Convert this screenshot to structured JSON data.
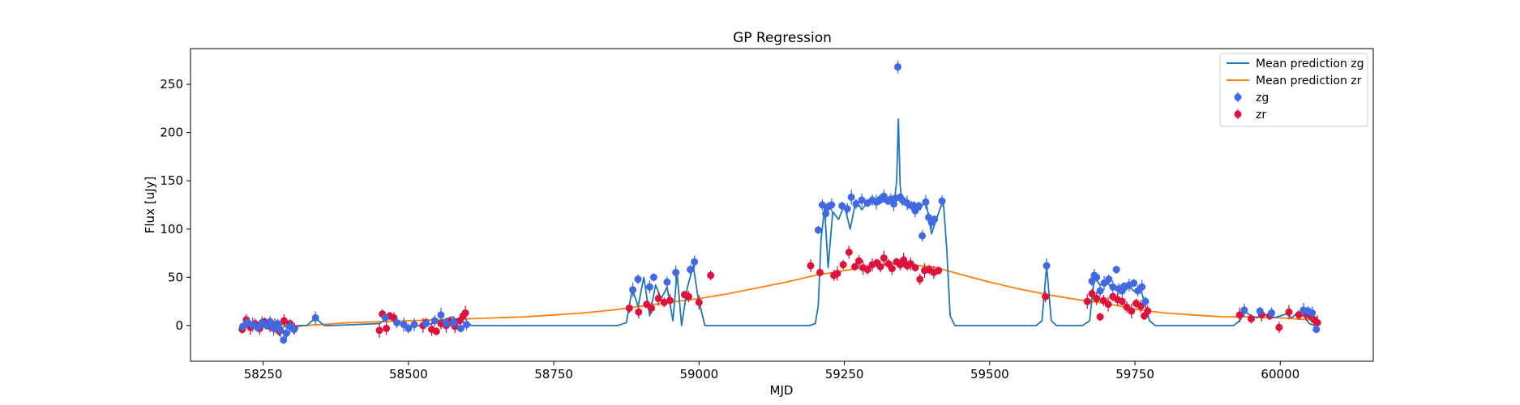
{
  "chart_data": {
    "type": "scatter",
    "title": "GP Regression",
    "xlabel": "MJD",
    "ylabel": "Flux [uJy]",
    "xlim": [
      58125,
      60160
    ],
    "ylim": [
      -37,
      287
    ],
    "xticks": [
      58250,
      58500,
      58750,
      59000,
      59250,
      59500,
      59750,
      60000
    ],
    "yticks": [
      0,
      50,
      100,
      150,
      200,
      250
    ],
    "grid": false,
    "legend_position": "top-right",
    "legend": [
      "Mean prediction zg",
      "Mean prediction zr",
      "zg",
      "zr"
    ],
    "colors": {
      "zg_line": "#1f77b4",
      "zr_line": "#ff7f0e",
      "zg_points": "#4169e1",
      "zr_points": "#dc143c"
    },
    "series": [
      {
        "name": "Mean prediction zg",
        "kind": "line",
        "x": [
          58210,
          58225,
          58240,
          58255,
          58270,
          58285,
          58300,
          58310,
          58325,
          58340,
          58355,
          58370,
          58450,
          58460,
          58470,
          58480,
          58490,
          58500,
          58510,
          58530,
          58545,
          58560,
          58575,
          58590,
          58600,
          58610,
          58700,
          58860,
          58875,
          58885,
          58895,
          58905,
          58915,
          58925,
          58935,
          58945,
          58955,
          58962,
          58970,
          58980,
          58990,
          58998,
          59010,
          59190,
          59200,
          59205,
          59210,
          59216,
          59222,
          59230,
          59240,
          59250,
          59260,
          59270,
          59280,
          59290,
          59300,
          59310,
          59320,
          59330,
          59336,
          59340,
          59343,
          59346,
          59350,
          59355,
          59360,
          59370,
          59380,
          59390,
          59400,
          59408,
          59414,
          59420,
          59426,
          59432,
          59440,
          59580,
          59590,
          59598,
          59606,
          59615,
          59660,
          59672,
          59680,
          59690,
          59700,
          59710,
          59720,
          59730,
          59740,
          59750,
          59760,
          59768,
          59775,
          59785,
          59920,
          59930,
          59940,
          59950,
          59960,
          59970,
          59980,
          59990,
          60000,
          60010,
          60020,
          60030,
          60040,
          60050,
          60060
        ],
        "y": [
          0,
          2,
          -2,
          1,
          -3,
          2,
          -5,
          0,
          0,
          8,
          0,
          0,
          2,
          6,
          8,
          4,
          2,
          -1,
          0,
          0,
          3,
          6,
          9,
          4,
          2,
          0,
          0,
          0,
          3,
          38,
          20,
          50,
          10,
          42,
          28,
          40,
          5,
          55,
          0,
          40,
          62,
          30,
          0,
          0,
          2,
          20,
          90,
          122,
          60,
          118,
          110,
          125,
          100,
          130,
          120,
          128,
          132,
          126,
          130,
          132,
          128,
          150,
          214,
          145,
          125,
          130,
          122,
          128,
          120,
          130,
          95,
          110,
          120,
          130,
          80,
          10,
          0,
          0,
          5,
          62,
          5,
          0,
          0,
          5,
          50,
          42,
          45,
          40,
          38,
          44,
          40,
          35,
          38,
          20,
          5,
          0,
          0,
          5,
          14,
          10,
          8,
          12,
          10,
          8,
          10,
          12,
          8,
          14,
          10,
          2,
          0
        ]
      },
      {
        "name": "Mean prediction zr",
        "kind": "line",
        "x": [
          58210,
          58225,
          58240,
          58260,
          58280,
          58300,
          58320,
          58350,
          58400,
          58450,
          58500,
          58550,
          58600,
          58650,
          58700,
          58750,
          58800,
          58850,
          58900,
          58950,
          59000,
          59050,
          59100,
          59150,
          59200,
          59250,
          59280,
          59300,
          59320,
          59340,
          59360,
          59380,
          59400,
          59420,
          59450,
          59500,
          59550,
          59600,
          59650,
          59700,
          59750,
          59800,
          59850,
          59900,
          59950,
          60000,
          60050,
          60065
        ],
        "y": [
          -2,
          -1,
          -2,
          -1,
          -1,
          -2,
          0,
          1,
          3,
          4,
          5,
          6,
          7,
          8,
          9,
          11,
          13,
          16,
          20,
          24,
          28,
          33,
          39,
          45,
          52,
          57,
          60,
          62,
          63,
          64,
          63,
          62,
          61,
          58,
          53,
          45,
          38,
          32,
          27,
          23,
          17,
          13,
          11,
          9,
          9,
          8,
          6,
          5
        ]
      },
      {
        "name": "zg",
        "kind": "points",
        "x": [
          58215,
          58222,
          58232,
          58240,
          58248,
          58256,
          58262,
          58268,
          58275,
          58280,
          58285,
          58290,
          58296,
          58303,
          58340,
          58460,
          58480,
          58492,
          58500,
          58510,
          58530,
          58545,
          58556,
          58565,
          58578,
          58590,
          58600,
          58886,
          58895,
          58915,
          58922,
          58945,
          58960,
          58985,
          58992,
          59205,
          59212,
          59218,
          59222,
          59228,
          59246,
          59255,
          59262,
          59270,
          59280,
          59290,
          59298,
          59305,
          59312,
          59318,
          59325,
          59330,
          59335,
          59338,
          59342,
          59346,
          59350,
          59358,
          59366,
          59372,
          59378,
          59384,
          59390,
          59395,
          59400,
          59405,
          59418,
          59598,
          59676,
          59680,
          59684,
          59690,
          59697,
          59705,
          59712,
          59718,
          59722,
          59728,
          59733,
          59740,
          59748,
          59755,
          59762,
          59768,
          59938,
          59965,
          59985,
          60040,
          60048,
          60055,
          60062
        ],
        "y": [
          -1,
          3,
          1,
          -2,
          3,
          0,
          4,
          -3,
          2,
          -5,
          -15,
          -8,
          -1,
          -4,
          8,
          8,
          3,
          1,
          -3,
          1,
          2,
          5,
          11,
          2,
          3,
          -3,
          1,
          37,
          48,
          40,
          50,
          45,
          55,
          58,
          66,
          99,
          125,
          116,
          123,
          125,
          124,
          121,
          133,
          126,
          130,
          127,
          130,
          128,
          131,
          134,
          129,
          131,
          126,
          132,
          268,
          133,
          130,
          127,
          124,
          119,
          124,
          93,
          128,
          112,
          107,
          110,
          129,
          62,
          46,
          52,
          50,
          36,
          44,
          48,
          40,
          58,
          38,
          36,
          40,
          42,
          44,
          36,
          40,
          25,
          16,
          15,
          13,
          16,
          15,
          13,
          -4
        ]
      },
      {
        "name": "zr",
        "kind": "points",
        "x": [
          58214,
          58221,
          58228,
          58236,
          58244,
          58252,
          58262,
          58270,
          58278,
          58286,
          58296,
          58304,
          58450,
          58455,
          58462,
          58468,
          58475,
          58525,
          58530,
          58540,
          58548,
          58556,
          58565,
          58572,
          58580,
          58588,
          58594,
          58598,
          58880,
          58896,
          58910,
          58918,
          58930,
          58940,
          58950,
          58975,
          58982,
          59000,
          59020,
          59192,
          59208,
          59232,
          59238,
          59248,
          59258,
          59268,
          59275,
          59282,
          59290,
          59298,
          59306,
          59312,
          59318,
          59326,
          59332,
          59340,
          59346,
          59352,
          59358,
          59364,
          59372,
          59380,
          59388,
          59396,
          59404,
          59412,
          59596,
          59668,
          59676,
          59684,
          59690,
          59696,
          59704,
          59712,
          59720,
          59728,
          59736,
          59744,
          59752,
          59760,
          59766,
          59772,
          59930,
          59950,
          59968,
          59982,
          59998,
          60015,
          60032,
          60045,
          60052,
          60058,
          60064
        ],
        "y": [
          -4,
          6,
          -2,
          2,
          -3,
          4,
          -1,
          0,
          -6,
          5,
          2,
          -3,
          -5,
          12,
          -3,
          10,
          8,
          0,
          3,
          -4,
          -6,
          2,
          0,
          4,
          -1,
          5,
          10,
          13,
          18,
          14,
          22,
          18,
          28,
          24,
          26,
          32,
          30,
          24,
          52,
          62,
          55,
          52,
          54,
          63,
          76,
          61,
          67,
          60,
          58,
          63,
          65,
          61,
          70,
          64,
          59,
          66,
          63,
          68,
          62,
          64,
          60,
          48,
          57,
          58,
          55,
          57,
          30,
          25,
          33,
          28,
          9,
          26,
          22,
          30,
          27,
          25,
          19,
          15,
          23,
          20,
          10,
          15,
          11,
          7,
          11,
          10,
          -2,
          14,
          11,
          12,
          10,
          6,
          3
        ]
      }
    ]
  }
}
